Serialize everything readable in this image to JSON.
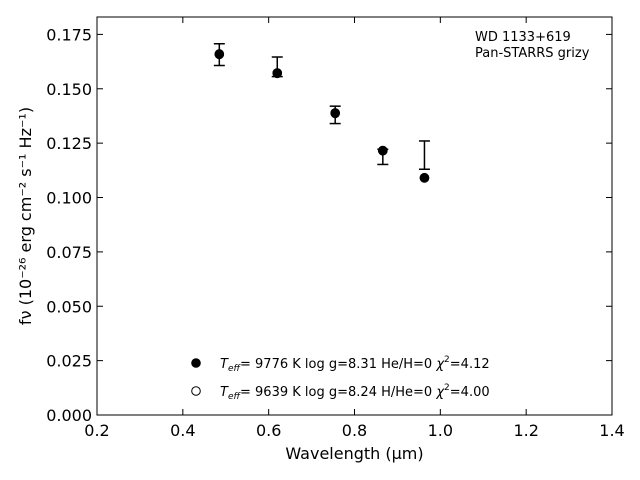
{
  "chart_data": {
    "type": "scatter",
    "annotation": [
      "WD 1133+619",
      "Pan-STARRS grizy"
    ],
    "xlabel": "Wavelength (μm)",
    "ylabel": "fν (10⁻²⁶ erg cm⁻² s⁻¹ Hz⁻¹)",
    "xlim": [
      0.2,
      1.4
    ],
    "ylim": [
      0.0,
      0.183
    ],
    "xticks": [
      "0.2",
      "0.4",
      "0.6",
      "0.8",
      "1.0",
      "1.2",
      "1.4"
    ],
    "yticks": [
      "0.000",
      "0.025",
      "0.050",
      "0.075",
      "0.100",
      "0.125",
      "0.150",
      "0.175"
    ],
    "grid": false,
    "legend_position": "lower-center",
    "observed": {
      "x": [
        0.485,
        0.62,
        0.755,
        0.866,
        0.963
      ],
      "y": [
        0.1657,
        0.1601,
        0.138,
        0.1187,
        0.1195
      ],
      "yerr": [
        0.005,
        0.0045,
        0.004,
        0.0035,
        0.0065
      ]
    },
    "series": [
      {
        "name": "Teff= 9776 K log g=8.31 He/H=0 χ²=4.12",
        "legend": {
          "teff": "9776 K",
          "logg": "log g=8.31",
          "comp": "He/H=0",
          "chi": "=4.12"
        },
        "marker": "filled-circle",
        "x": [
          0.485,
          0.62,
          0.755,
          0.866,
          0.963
        ],
        "y": [
          0.166,
          0.1573,
          0.1389,
          0.1216,
          0.1091
        ]
      },
      {
        "name": "Teff= 9639 K log g=8.24 H/He=0 χ²=4.00",
        "legend": {
          "teff": "9639 K",
          "logg": "log g=8.24",
          "comp": "H/He=0",
          "chi": "=4.00"
        },
        "marker": "open-circle",
        "x": [
          0.485,
          0.62,
          0.755,
          0.866,
          0.963
        ],
        "y": [
          0.1658,
          0.1571,
          0.1387,
          0.1215,
          0.109
        ]
      }
    ]
  }
}
